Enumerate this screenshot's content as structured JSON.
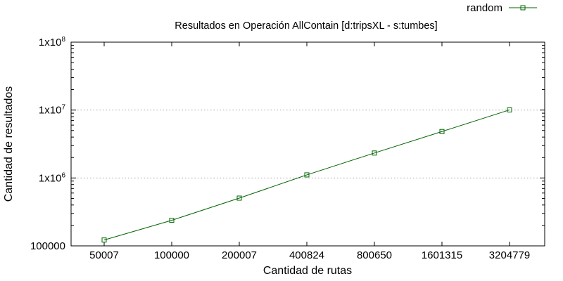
{
  "chart_data": {
    "type": "line",
    "title": "Resultados en Operación AllContain [d:tripsXL - s:tumbes]",
    "xlabel": "Cantidad de rutas",
    "ylabel": "Cantidad de resultados",
    "x_scale": "categorical",
    "y_scale": "log",
    "ylim": [
      100000,
      100000000
    ],
    "categories": [
      "50007",
      "100000",
      "200007",
      "400824",
      "800650",
      "1601315",
      "3204779"
    ],
    "yticks": [
      {
        "value": 100000,
        "label": "100000"
      },
      {
        "value": 1000000,
        "label": "1x10",
        "exp": "6"
      },
      {
        "value": 10000000,
        "label": "1x10",
        "exp": "7"
      },
      {
        "value": 100000000,
        "label": "1x10",
        "exp": "8"
      }
    ],
    "series": [
      {
        "name": "random",
        "color": "#006400",
        "marker": "square",
        "values": [
          122000,
          238000,
          505000,
          1110000,
          2330000,
          4830000,
          10050000
        ]
      }
    ],
    "grid": "horizontal dotted at major y ticks",
    "legend_position": "top-right"
  }
}
